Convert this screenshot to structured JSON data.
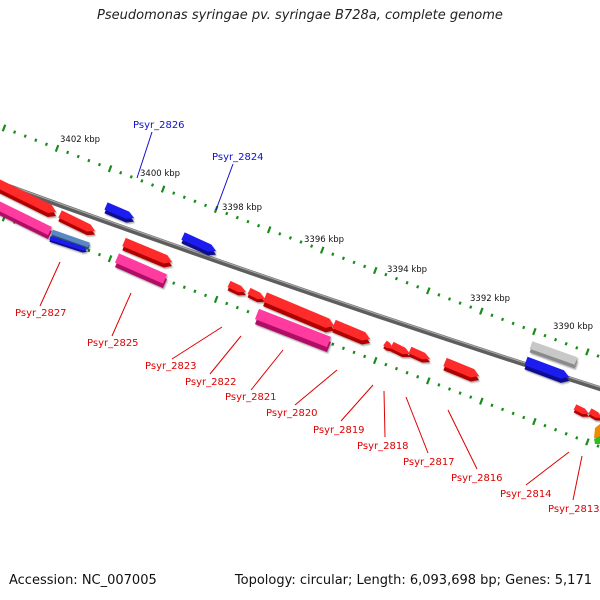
{
  "title": "Pseudomonas syringae pv. syringae B728a, complete genome",
  "accession": "Accession: NC_007005",
  "stats": "Topology: circular; Length: 6,093,698 bp; Genes: 5,171",
  "colors": {
    "backbone": "#7a7a7a",
    "ticks": "#1a8c1a",
    "gene_red": "#ee0000",
    "gene_pink": "#ee1188",
    "gene_blue": "#1010dd",
    "gene_steel": "#4a78b0",
    "gene_grey": "#b8b8b8",
    "label_red": "#dd0000",
    "label_blue": "#1010cc"
  },
  "scale_labels": [
    "3402 kbp",
    "3400 kbp",
    "3398 kbp",
    "3396 kbp",
    "3394 kbp",
    "3392 kbp",
    "3390 kbp"
  ],
  "gene_labels": [
    {
      "name": "Psyr_2826",
      "color": "blue"
    },
    {
      "name": "Psyr_2824",
      "color": "blue"
    },
    {
      "name": "Psyr_2827",
      "color": "red"
    },
    {
      "name": "Psyr_2825",
      "color": "red"
    },
    {
      "name": "Psyr_2823",
      "color": "red"
    },
    {
      "name": "Psyr_2822",
      "color": "red"
    },
    {
      "name": "Psyr_2821",
      "color": "red"
    },
    {
      "name": "Psyr_2820",
      "color": "red"
    },
    {
      "name": "Psyr_2819",
      "color": "red"
    },
    {
      "name": "Psyr_2818",
      "color": "red"
    },
    {
      "name": "Psyr_2817",
      "color": "red"
    },
    {
      "name": "Psyr_2816",
      "color": "red"
    },
    {
      "name": "Psyr_2814",
      "color": "red"
    },
    {
      "name": "Psyr_2813",
      "color": "red"
    }
  ],
  "genes": [
    {
      "id": "upper-red-a",
      "color": "red"
    },
    {
      "id": "upper-red-b",
      "color": "red"
    },
    {
      "id": "upper-pink-a",
      "color": "pink"
    },
    {
      "id": "steel-a",
      "color": "steel"
    },
    {
      "id": "blue-a",
      "color": "blue"
    },
    {
      "id": "blue-2826",
      "color": "blue"
    },
    {
      "id": "blue-2824",
      "color": "blue"
    },
    {
      "id": "red-2825",
      "color": "red"
    },
    {
      "id": "pink-2825",
      "color": "pink"
    },
    {
      "id": "red-2823",
      "color": "red"
    },
    {
      "id": "red-2822",
      "color": "red"
    },
    {
      "id": "red-2821",
      "color": "red"
    },
    {
      "id": "pink-2821",
      "color": "pink"
    },
    {
      "id": "red-2820",
      "color": "red"
    },
    {
      "id": "red-2819",
      "color": "red"
    },
    {
      "id": "red-2818",
      "color": "red"
    },
    {
      "id": "red-2817",
      "color": "red"
    },
    {
      "id": "red-2816",
      "color": "red"
    },
    {
      "id": "grey-a",
      "color": "grey"
    },
    {
      "id": "blue-b",
      "color": "blue"
    },
    {
      "id": "red-2814",
      "color": "red"
    },
    {
      "id": "red-2813",
      "color": "red"
    }
  ]
}
